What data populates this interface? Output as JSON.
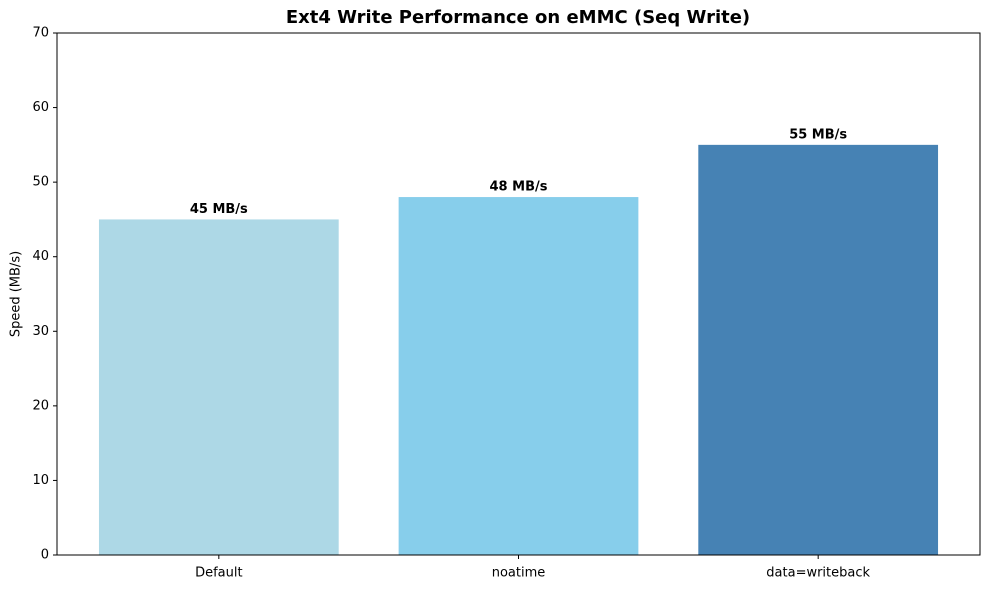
{
  "chart_data": {
    "type": "bar",
    "title": "Ext4 Write Performance on eMMC (Seq Write)",
    "ylabel": "Speed (MB/s)",
    "categories": [
      "Default",
      "noatime",
      "data=writeback"
    ],
    "values": [
      45,
      48,
      55
    ],
    "value_labels": [
      "45 MB/s",
      "48 MB/s",
      "55 MB/s"
    ],
    "colors": [
      "#add8e6",
      "#87ceeb",
      "#4682b4"
    ],
    "ylim": [
      0,
      70
    ],
    "yticks": [
      0,
      10,
      20,
      30,
      40,
      50,
      60,
      70
    ],
    "grid": false
  }
}
